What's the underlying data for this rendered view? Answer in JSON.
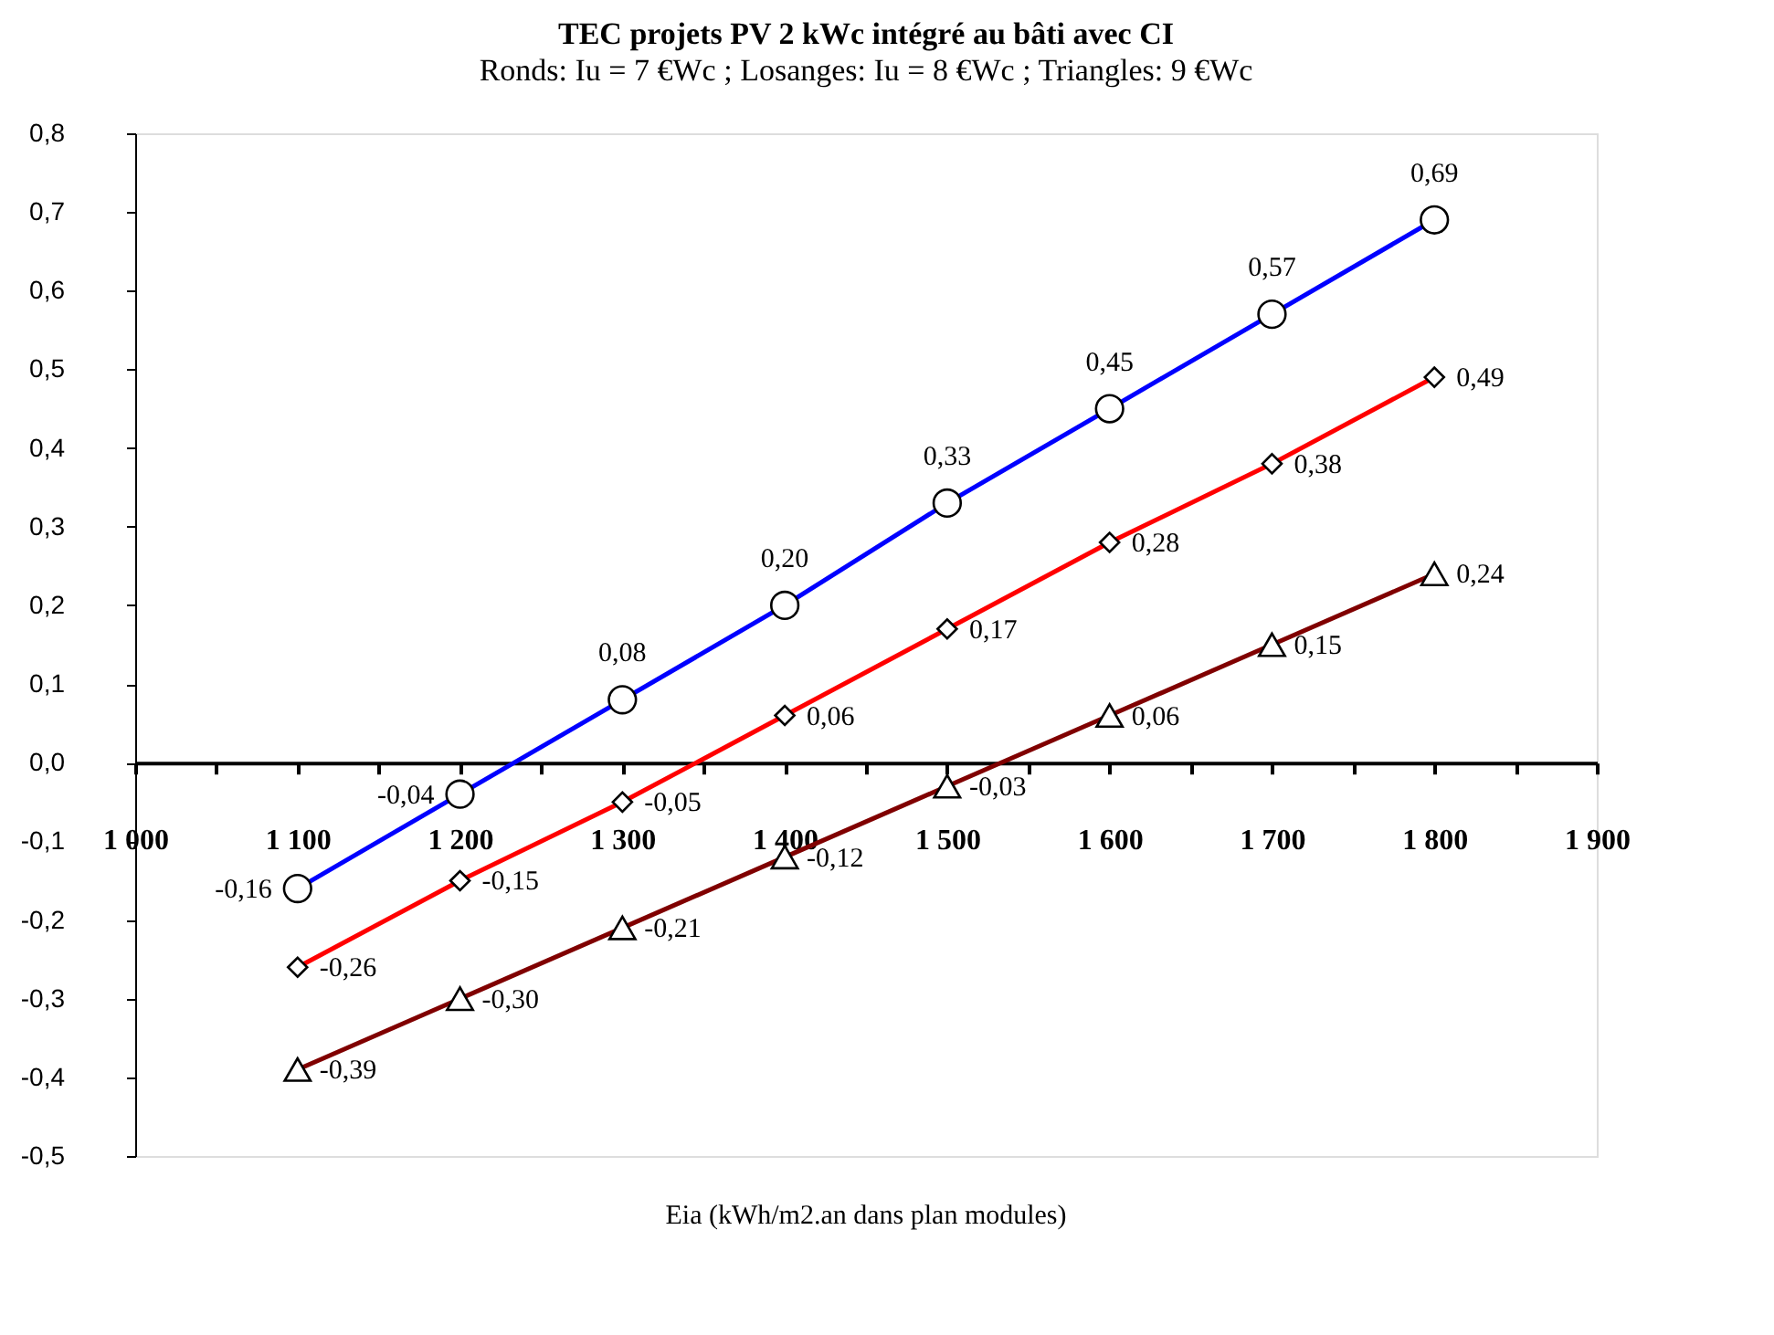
{
  "chart_data": {
    "type": "line",
    "title": "TEC projets PV 2 kWc intégré au bâti avec CI",
    "subtitle": "Ronds: Iu = 7 €Wc ; Losanges: Iu = 8 €Wc ; Triangles: 9 €Wc",
    "xlabel": "Eia (kWh/m2.an dans plan modules)",
    "x": [
      1100,
      1200,
      1300,
      1400,
      1500,
      1600,
      1700,
      1800
    ],
    "series": [
      {
        "color": "#0000ff",
        "marker": "circle",
        "values": [
          -0.16,
          -0.04,
          0.08,
          0.2,
          0.33,
          0.45,
          0.57,
          0.69
        ],
        "value_labels": [
          "-0,16",
          "-0,04",
          "0,08",
          "0,20",
          "0,33",
          "0,45",
          "0,57",
          "0,69"
        ]
      },
      {
        "color": "#ff0000",
        "marker": "diamond",
        "values": [
          -0.26,
          -0.15,
          -0.05,
          0.06,
          0.17,
          0.28,
          0.38,
          0.49
        ],
        "value_labels": [
          "-0,26",
          "-0,15",
          "-0,05",
          "0,06",
          "0,17",
          "0,28",
          "0,38",
          "0,49"
        ]
      },
      {
        "color": "#800000",
        "marker": "triangle",
        "values": [
          -0.39,
          -0.3,
          -0.21,
          -0.12,
          -0.03,
          0.06,
          0.15,
          0.24
        ],
        "value_labels": [
          "-0,39",
          "-0,30",
          "-0,21",
          "-0,12",
          "-0,03",
          "0,06",
          "0,15",
          "0,24"
        ]
      }
    ],
    "xlim": [
      1000,
      1900
    ],
    "xticks": [
      {
        "value": 1000,
        "label": "1 000"
      },
      {
        "value": 1050,
        "label": null
      },
      {
        "value": 1100,
        "label": "1 100"
      },
      {
        "value": 1150,
        "label": null
      },
      {
        "value": 1200,
        "label": "1 200"
      },
      {
        "value": 1250,
        "label": null
      },
      {
        "value": 1300,
        "label": "1 300"
      },
      {
        "value": 1350,
        "label": null
      },
      {
        "value": 1400,
        "label": "1 400"
      },
      {
        "value": 1450,
        "label": null
      },
      {
        "value": 1500,
        "label": "1 500"
      },
      {
        "value": 1550,
        "label": null
      },
      {
        "value": 1600,
        "label": "1 600"
      },
      {
        "value": 1650,
        "label": null
      },
      {
        "value": 1700,
        "label": "1 700"
      },
      {
        "value": 1750,
        "label": null
      },
      {
        "value": 1800,
        "label": "1 800"
      },
      {
        "value": 1850,
        "label": null
      },
      {
        "value": 1900,
        "label": "1 900"
      }
    ],
    "ylim": [
      -0.5,
      0.8
    ],
    "yticks": [
      {
        "value": -0.5,
        "label": "-0,5"
      },
      {
        "value": -0.4,
        "label": "-0,4"
      },
      {
        "value": -0.3,
        "label": "-0,3"
      },
      {
        "value": -0.2,
        "label": "-0,2"
      },
      {
        "value": -0.1,
        "label": "-0,1"
      },
      {
        "value": 0.0,
        "label": "0,0"
      },
      {
        "value": 0.1,
        "label": "0,1"
      },
      {
        "value": 0.2,
        "label": "0,2"
      },
      {
        "value": 0.3,
        "label": "0,3"
      },
      {
        "value": 0.4,
        "label": "0,4"
      },
      {
        "value": 0.5,
        "label": "0,5"
      },
      {
        "value": 0.6,
        "label": "0,6"
      },
      {
        "value": 0.7,
        "label": "0,7"
      },
      {
        "value": 0.8,
        "label": "0,8"
      }
    ],
    "grid": false
  }
}
